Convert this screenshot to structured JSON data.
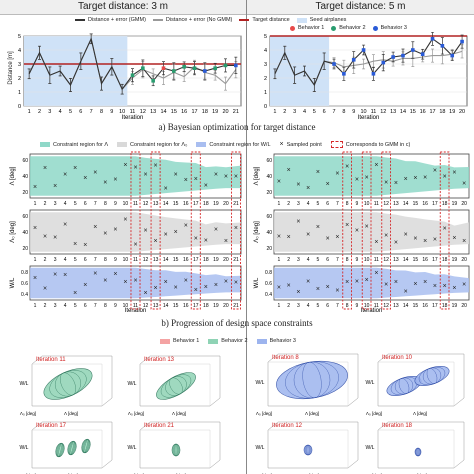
{
  "headers": {
    "left": "Target distance: 3 m",
    "right": "Target distance: 5 m"
  },
  "legend_a": {
    "items": [
      "Distance + error (GMM)",
      "Distance + error (No GMM)",
      "Target distance",
      "Seed airplanes"
    ],
    "behaviors": [
      "Behavior 1",
      "Behavior 2",
      "Behavior 3"
    ]
  },
  "panel_a": {
    "ylabel": "Distance [m]",
    "xlabel": "Iteration",
    "caption": "a) Bayesian optimization for target distance",
    "yticks": [
      "0",
      "1",
      "2",
      "3",
      "4",
      "5"
    ],
    "xticks": [
      "1",
      "2",
      "3",
      "4",
      "5",
      "6",
      "7",
      "8",
      "9",
      "10",
      "11",
      "12",
      "13",
      "14",
      "15",
      "16",
      "17",
      "18",
      "19",
      "20",
      "21"
    ]
  },
  "legend_b": {
    "items": [
      "Constraint region for Λ",
      "Constraint region for Λ₀",
      "Constraint region for W/L",
      "Sampled point",
      "Corresponds to GMM in c)"
    ]
  },
  "panel_b": {
    "ylabels": [
      "Λ [deg]",
      "Λ₀ [deg]",
      "W/L"
    ],
    "xlabel": "Iteration",
    "caption": "b) Progression of design space constraints",
    "left_ticks": [
      "1",
      "2",
      "3",
      "4",
      "5",
      "6",
      "7",
      "8",
      "9",
      "10",
      "11",
      "12",
      "13",
      "14",
      "15",
      "16",
      "17",
      "18",
      "19",
      "20",
      "21"
    ],
    "right_ticks": [
      "1",
      "2",
      "3",
      "4",
      "5",
      "6",
      "7",
      "8",
      "9",
      "10",
      "11",
      "12",
      "13",
      "14",
      "15",
      "16",
      "17",
      "18",
      "19",
      "20"
    ],
    "lambda_yticks": [
      "60",
      "40",
      "20"
    ],
    "lambda0_yticks": [
      "60",
      "40",
      "20"
    ],
    "wl_yticks": [
      "0.8",
      "0.6",
      "0.4"
    ]
  },
  "legend_c": {
    "items": [
      "Behavior 1",
      "Behavior 2",
      "Behavior 3"
    ]
  },
  "panel_c": {
    "labels": [
      "Iteration 11",
      "Iteration 13",
      "Iteration 17",
      "Iteration 21",
      "Iteration 8",
      "Iteration 10",
      "Iteration 12",
      "Iteration 18"
    ],
    "axis_w": "W/L",
    "axis_l0": "Λ₀ [deg]",
    "axis_l": "Λ [deg]",
    "tick_150": "150",
    "tick_100": "100",
    "tick_50": "50"
  },
  "colors": {
    "gmm": "#333333",
    "nogmm": "#999999",
    "target": "#b22222",
    "seed": "#cfe2f7",
    "behavior1": "#e84a4a",
    "behavior2": "#2a9d6f",
    "behavior3": "#2a5bd7",
    "lambda_region": "#8fd8c8",
    "lambda0_region": "#d9d9d9",
    "wl_region": "#a9bef0",
    "gmm_box": "#d62728"
  },
  "chart_data": [
    {
      "type": "line",
      "title": "Target distance: 3 m",
      "xlabel": "Iteration",
      "ylabel": "Distance [m]",
      "ylim": [
        0,
        5
      ],
      "x": [
        1,
        2,
        3,
        4,
        5,
        6,
        7,
        8,
        9,
        10,
        11,
        12,
        13,
        14,
        15,
        16,
        17,
        18,
        19,
        20,
        21
      ],
      "series": [
        {
          "name": "Distance + error (GMM)",
          "values": [
            2.3,
            3.8,
            2.2,
            2.5,
            1.5,
            3.2,
            4.8,
            1.6,
            2.8,
            1.2,
            2.2,
            2.7,
            1.8,
            2.7,
            2.5,
            2.8,
            2.7,
            2.5,
            2.7,
            2.9,
            2.9
          ]
        },
        {
          "name": "Distance + error (No GMM)",
          "values": [
            2.3,
            3.8,
            2.2,
            2.5,
            1.5,
            3.2,
            4.8,
            1.6,
            2.8,
            1.2,
            2.0,
            2.6,
            2.3,
            2.0,
            2.4,
            2.1,
            2.8,
            2.4,
            2.2,
            1.6,
            2.6
          ]
        },
        {
          "name": "Target distance",
          "values": [
            3,
            3,
            3,
            3,
            3,
            3,
            3,
            3,
            3,
            3,
            3,
            3,
            3,
            3,
            3,
            3,
            3,
            3,
            3,
            3,
            3
          ]
        }
      ]
    },
    {
      "type": "line",
      "title": "Target distance: 5 m",
      "xlabel": "Iteration",
      "ylabel": "Distance [m]",
      "ylim": [
        0,
        5
      ],
      "x": [
        1,
        2,
        3,
        4,
        5,
        6,
        7,
        8,
        9,
        10,
        11,
        12,
        13,
        14,
        15,
        16,
        17,
        18,
        19,
        20
      ],
      "series": [
        {
          "name": "Distance + error (GMM)",
          "values": [
            2.3,
            3.8,
            2.2,
            2.5,
            1.5,
            3.2,
            3.0,
            2.3,
            3.3,
            4.0,
            2.3,
            3.1,
            3.5,
            3.6,
            4.0,
            3.7,
            4.8,
            4.3,
            3.6,
            4.6
          ]
        },
        {
          "name": "Distance + error (No GMM)",
          "values": [
            2.3,
            3.8,
            2.2,
            2.5,
            1.5,
            3.2,
            3.1,
            2.8,
            2.9,
            3.0,
            3.2,
            3.3,
            3.2,
            3.4,
            3.4,
            3.5,
            3.6,
            3.6,
            3.7,
            3.9
          ]
        },
        {
          "name": "Target distance",
          "values": [
            5,
            5,
            5,
            5,
            5,
            5,
            5,
            5,
            5,
            5,
            5,
            5,
            5,
            5,
            5,
            5,
            5,
            5,
            5,
            5
          ]
        }
      ]
    }
  ]
}
